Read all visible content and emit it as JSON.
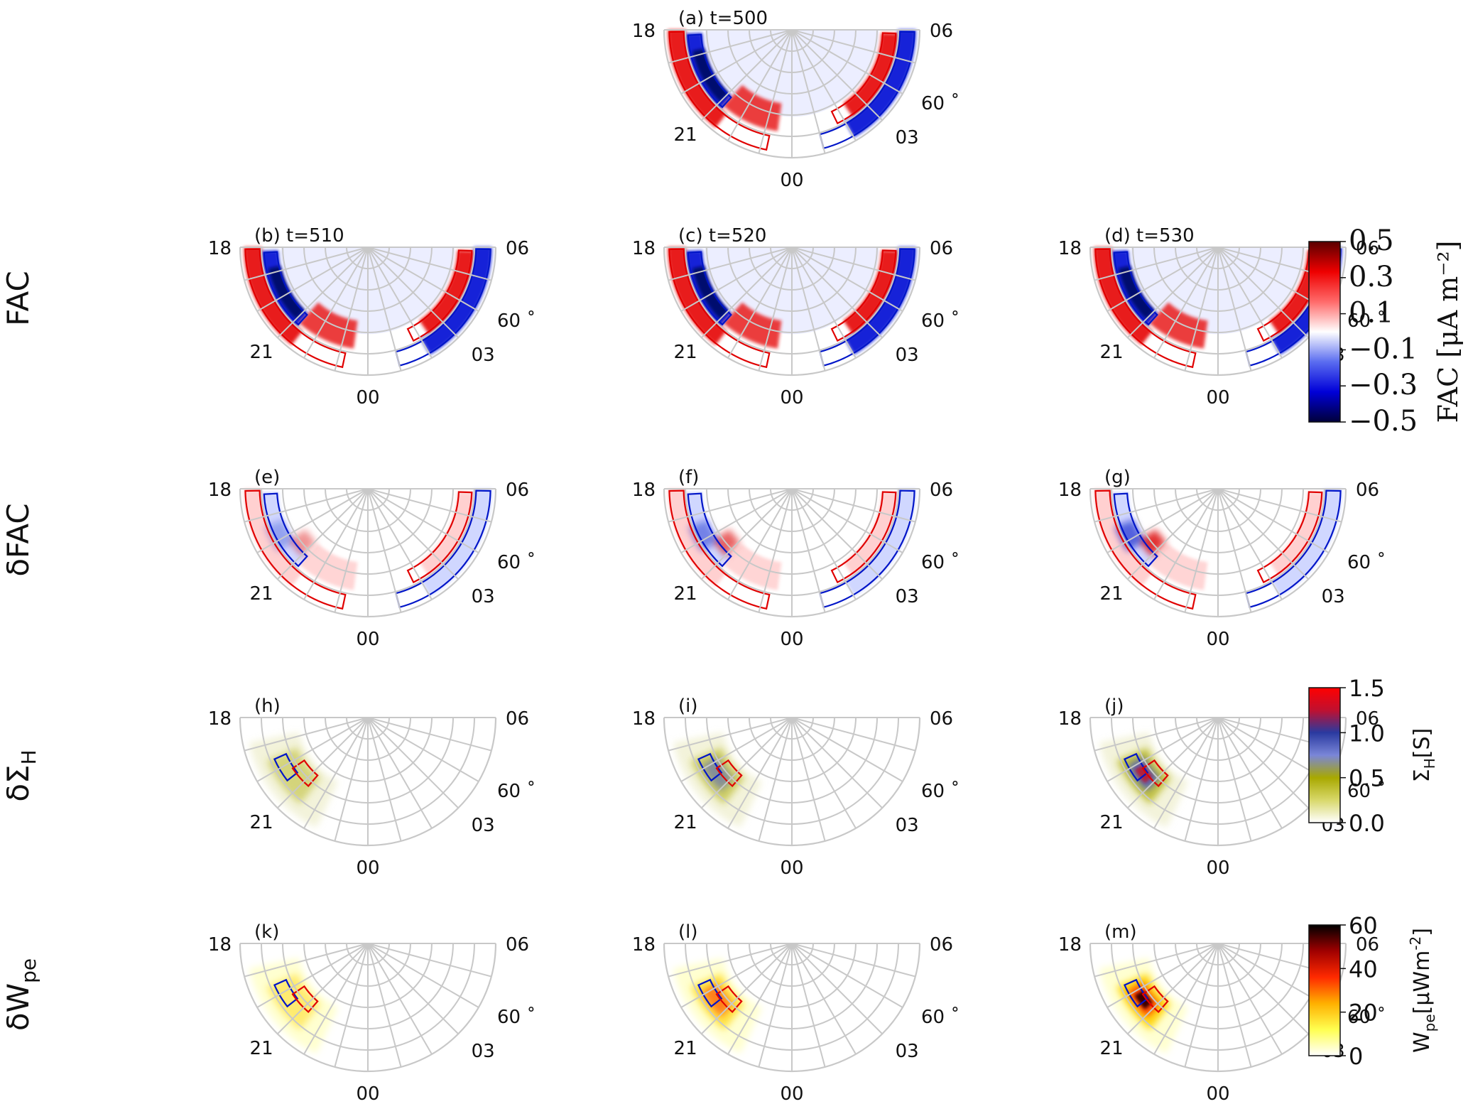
{
  "chart_data": {
    "type": "heatmap",
    "projection": "polar-half (MLT / magnetic latitude)",
    "grid": true,
    "mlt_labels": [
      "18",
      "21",
      "00",
      "03",
      "06"
    ],
    "lat_label": "60$^\\circ$",
    "lat_label_display": "60 ˚",
    "row_labels": [
      "FAC",
      "δFAC",
      "δΣ",
      "δW"
    ],
    "row_label_subscripts": [
      "",
      "",
      "H",
      "pe"
    ],
    "panels": [
      {
        "id": "a",
        "label": "(a) t=500",
        "row": 0,
        "col": 1,
        "field": "FAC"
      },
      {
        "id": "b",
        "label": "(b) t=510",
        "row": 1,
        "col": 0,
        "field": "FAC"
      },
      {
        "id": "c",
        "label": "(c) t=520",
        "row": 1,
        "col": 1,
        "field": "FAC"
      },
      {
        "id": "d",
        "label": "(d) t=530",
        "row": 1,
        "col": 2,
        "field": "FAC"
      },
      {
        "id": "e",
        "label": "(e)",
        "row": 2,
        "col": 0,
        "field": "dFAC"
      },
      {
        "id": "f",
        "label": "(f)",
        "row": 2,
        "col": 1,
        "field": "dFAC"
      },
      {
        "id": "g",
        "label": "(g)",
        "row": 2,
        "col": 2,
        "field": "dFAC"
      },
      {
        "id": "h",
        "label": "(h)",
        "row": 3,
        "col": 0,
        "field": "dSigmaH",
        "intensity": 0.45
      },
      {
        "id": "i",
        "label": "(i)",
        "row": 3,
        "col": 1,
        "field": "dSigmaH",
        "intensity": 0.8
      },
      {
        "id": "j",
        "label": "(j)",
        "row": 3,
        "col": 2,
        "field": "dSigmaH",
        "intensity": 1.3
      },
      {
        "id": "k",
        "label": "(k)",
        "row": 4,
        "col": 0,
        "field": "dWpe",
        "intensity": 12
      },
      {
        "id": "l",
        "label": "(l)",
        "row": 4,
        "col": 1,
        "field": "dWpe",
        "intensity": 35
      },
      {
        "id": "m",
        "label": "(m)",
        "row": 4,
        "col": 2,
        "field": "dWpe",
        "intensity": 60
      }
    ],
    "colorbars": [
      {
        "name": "FAC",
        "label": "FAC [μA m⁻²]",
        "ticks": [
          "0.5",
          "0.3",
          "0.1",
          "−0.1",
          "−0.3",
          "−0.5"
        ],
        "range": [
          -0.5,
          0.5
        ],
        "colors": [
          "#00003a",
          "#0000d8",
          "#5a6cf0",
          "#ffffff",
          "#ff6a6a",
          "#ee0000",
          "#5a0000"
        ]
      },
      {
        "name": "SigmaH",
        "label_main": "Σ",
        "label_sub": "H",
        "label_unit": "[S]",
        "ticks": [
          "1.5",
          "1.0",
          "0.5",
          "0.0"
        ],
        "range": [
          0.0,
          1.5
        ],
        "colors": [
          "#ffffff",
          "#d8d86a",
          "#a8a800",
          "#7a86d8",
          "#2a3aa0",
          "#c01030",
          "#ff0000"
        ]
      },
      {
        "name": "Wpe",
        "label_main": "W",
        "label_sub": "pe",
        "label_unit": "[μWm",
        "label_sup": "-2",
        "label_close": "]",
        "ticks": [
          "60",
          "40",
          "20",
          "0"
        ],
        "range": [
          0,
          60
        ],
        "colors": [
          "#ffffff",
          "#ffff50",
          "#ffb000",
          "#ff2a00",
          "#a00000",
          "#000000"
        ]
      }
    ],
    "contours": {
      "positive": "#e00000",
      "negative": "#0015c8"
    }
  }
}
